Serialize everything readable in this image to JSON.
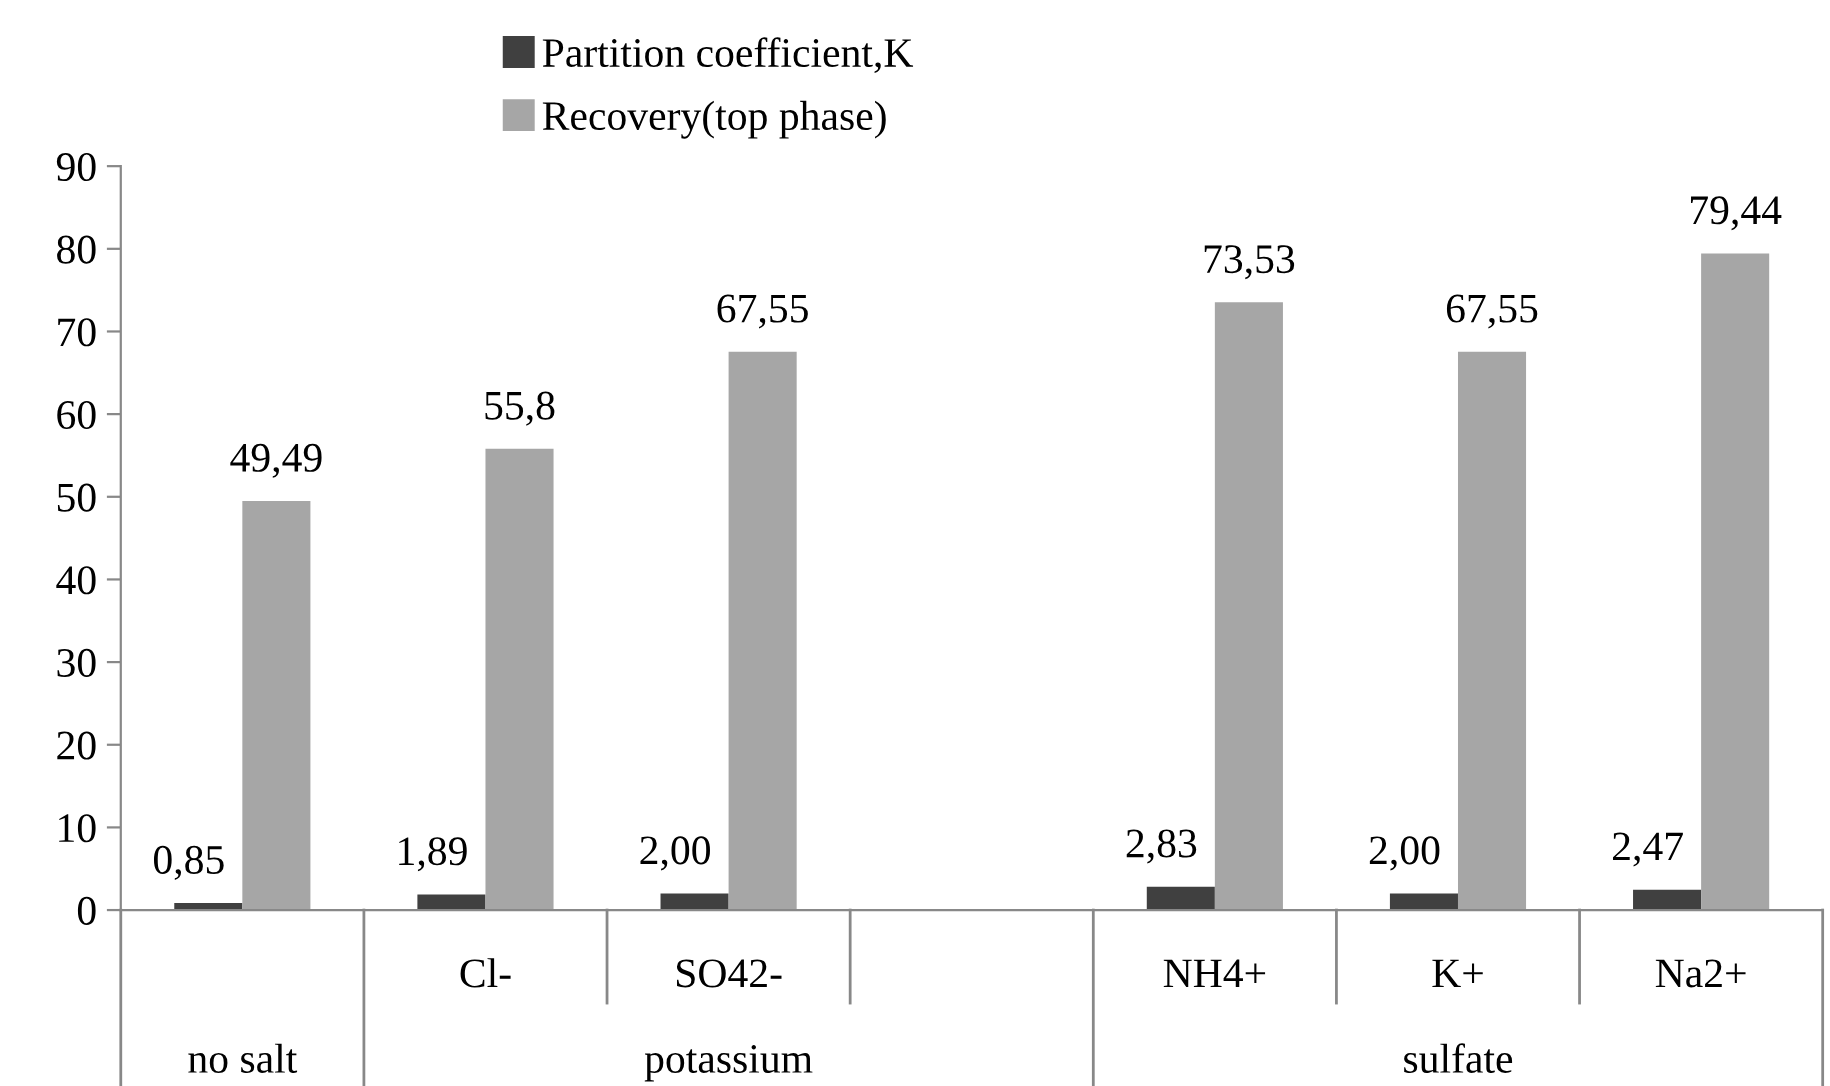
{
  "chart_data": {
    "type": "bar",
    "categories": [
      null,
      "Cl-",
      "SO42-",
      null,
      "NH4+",
      "K+",
      "Na2+"
    ],
    "series": [
      {
        "name": "Partition coefficient,K",
        "color": "#404040",
        "values": [
          0.85,
          1.89,
          2.0,
          null,
          2.83,
          2.0,
          2.47
        ],
        "value_labels": [
          "0,85",
          "1,89",
          "2,00",
          null,
          "2,83",
          "2,00",
          "2,47"
        ]
      },
      {
        "name": "Recovery(top phase)",
        "color": "#a6a6a6",
        "values": [
          49.49,
          55.8,
          67.55,
          null,
          73.53,
          67.55,
          79.44
        ],
        "value_labels": [
          "49,49",
          "55,8",
          "67,55",
          null,
          "73,53",
          "67,55",
          "79,44"
        ]
      }
    ],
    "annotations": [
      "no salt",
      "potassium",
      "sulfate"
    ],
    "ylim": [
      0,
      90
    ],
    "yticks": [
      0,
      10,
      20,
      30,
      40,
      50,
      60,
      70,
      80,
      90
    ],
    "grid": false,
    "legend": "top"
  }
}
